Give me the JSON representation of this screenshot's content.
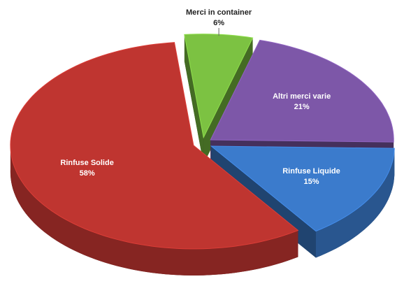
{
  "chart_data": {
    "type": "pie",
    "categories": [
      "Merci in container",
      "Altri merci varie",
      "Rinfuse Liquide",
      "Rinfuse Solide"
    ],
    "values": [
      6,
      21,
      15,
      58
    ],
    "value_labels": [
      "6%",
      "21%",
      "15%",
      "58%"
    ],
    "colors": [
      "#7cc242",
      "#7d57a8",
      "#3b7bcc",
      "#bf3530"
    ]
  }
}
